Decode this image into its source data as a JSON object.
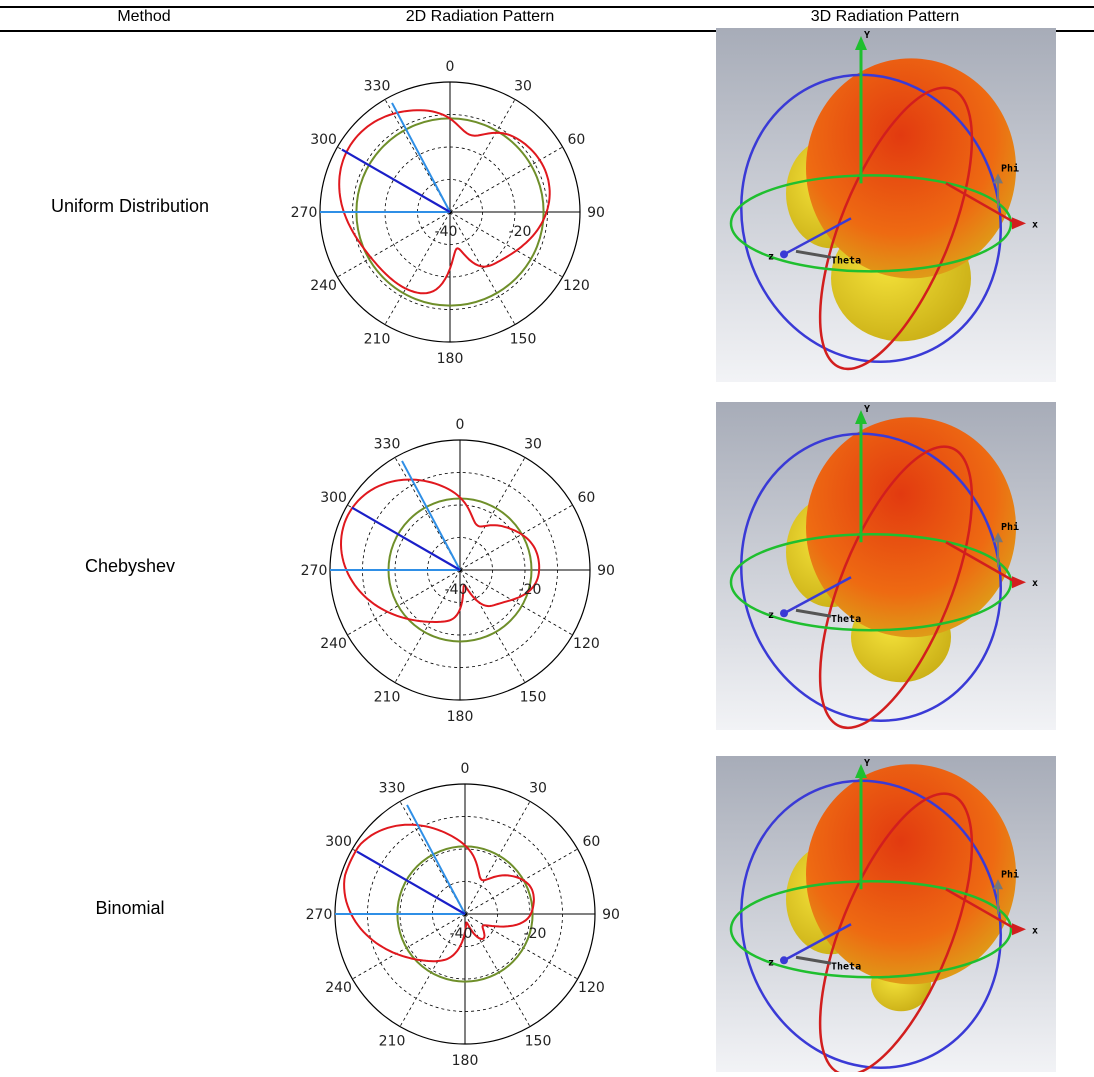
{
  "table": {
    "headers": {
      "method": "Method",
      "pattern_2d": "2D Radiation Pattern",
      "pattern_3d": "3D Radiation Pattern"
    },
    "rows": [
      {
        "method": "Uniform Distribution",
        "polar": {
          "ticks": [
            "0",
            "330",
            "300",
            "270",
            "240",
            "210",
            "180",
            "150",
            "120",
            "90",
            "60",
            "30"
          ],
          "radial_labels": [
            "-40",
            "-20"
          ],
          "lobe_max_x": 1,
          "green_circle_fraction": 0.72
        },
        "axes3d": {
          "y": "Y",
          "x": "x",
          "z": "z",
          "phi": "Phi",
          "theta": "Theta"
        }
      },
      {
        "method": "Chebyshev",
        "polar": {
          "ticks": [
            "0",
            "330",
            "300",
            "270",
            "240",
            "210",
            "180",
            "150",
            "120",
            "90",
            "60",
            "30"
          ],
          "radial_labels": [
            "-40",
            "-20"
          ],
          "green_circle_fraction": 0.55
        },
        "axes3d": {
          "y": "Y",
          "x": "x",
          "z": "z",
          "phi": "Phi",
          "theta": "Theta"
        }
      },
      {
        "method": "Binomial",
        "polar": {
          "ticks": [
            "0",
            "330",
            "300",
            "270",
            "240",
            "210",
            "180",
            "150",
            "120",
            "90",
            "60",
            "30"
          ],
          "radial_labels": [
            "-40",
            "-20"
          ],
          "green_circle_fraction": 0.52
        },
        "axes3d": {
          "y": "Y",
          "x": "x",
          "z": "z",
          "phi": "Phi",
          "theta": "Theta"
        }
      }
    ]
  },
  "colors": {
    "pattern_line": "#e0181e",
    "reference_circle": "#6f8f2a",
    "main_lobe_line": "#1a1fc8",
    "beam_line": "#2f8fe6",
    "axis_green": "#1fbf2f",
    "ring_blue": "#3a3ad6",
    "ring_red": "#d21e1e"
  }
}
